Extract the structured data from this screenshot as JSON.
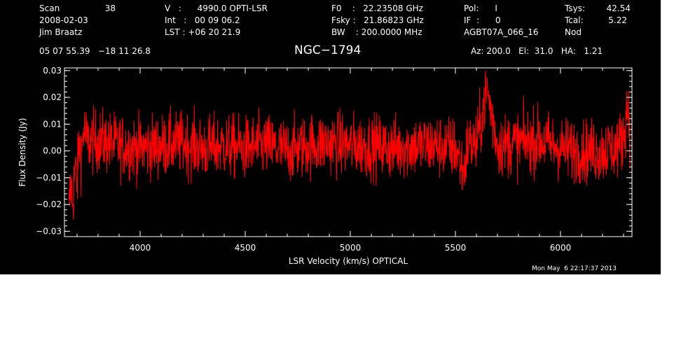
{
  "header": {
    "col1": [
      "Scan",
      "2008-02-03",
      "Jim Braatz"
    ],
    "scan_number": "38",
    "col2": [
      "V   :      4990.0 OPTI-LSR",
      "Int   :   00 09 06.2",
      "LST : +06 20 21.9"
    ],
    "col3": [
      "F0    :   22.23508 GHz",
      "Fsky :   21.86823 GHz",
      "BW    : 200.0000 MHz"
    ],
    "col4": [
      "Pol:      I",
      "IF  :      0",
      "AGBT07A_066_16"
    ],
    "col5": [
      "Tsys:",
      "Tcal:",
      "Nod"
    ],
    "tsys_value": "42.54",
    "tcal_value": "5.22",
    "coords": "05 07 55.39   −18 11 26.8",
    "source_name": "NGC−1794",
    "pointing": "Az: 200.0   El:  31.0   HA:   1.21"
  },
  "footer": {
    "timestamp": "Mon May  6 22:17:37 2013"
  },
  "chart_data": {
    "type": "line",
    "xlabel": "LSR Velocity (km/s) OPTICAL",
    "ylabel": "Flux Density (Jy)",
    "xlim": [
      3640,
      6340
    ],
    "ylim": [
      -0.032,
      0.031
    ],
    "x_ticks": [
      4000,
      4500,
      5000,
      5500,
      6000
    ],
    "x_tick_labels": [
      "4000",
      "4500",
      "5000",
      "5500",
      "6000"
    ],
    "y_ticks": [
      -0.03,
      -0.02,
      -0.01,
      0.0,
      0.01,
      0.02,
      0.03
    ],
    "y_tick_labels": [
      "−0.03",
      "−0.02",
      "−0.01",
      "0.00",
      "0.01",
      "0.02",
      "0.03"
    ],
    "grid": false,
    "series": [
      {
        "color": "#ff0000",
        "x": [
          3660,
          3670,
          3680,
          3690,
          3700,
          3710,
          3720,
          3730,
          3750,
          3800,
          3900,
          4000,
          4100,
          4200,
          4300,
          4400,
          4500,
          4600,
          4700,
          4800,
          4900,
          5000,
          5100,
          5200,
          5300,
          5400,
          5500,
          5540,
          5560,
          5600,
          5650,
          5700,
          5800,
          5900,
          6000,
          6100,
          6200,
          6250,
          6280,
          6300,
          6310,
          6320,
          6330
        ],
        "y": [
          -0.024,
          -0.012,
          -0.019,
          -0.006,
          -0.012,
          0.004,
          -0.002,
          0.008,
          0.003,
          0.004,
          0.002,
          0.001,
          0.002,
          0.003,
          0.001,
          0.002,
          0.001,
          0.002,
          0.0,
          0.002,
          0.003,
          0.002,
          0.002,
          0.001,
          0.002,
          0.002,
          0.001,
          -0.008,
          0.003,
          0.002,
          0.023,
          0.002,
          0.003,
          0.004,
          0.001,
          0.0,
          0.0,
          0.001,
          0.002,
          0.006,
          0.012,
          0.018,
          0.008
        ],
        "noise_rms": 0.006
      }
    ]
  }
}
